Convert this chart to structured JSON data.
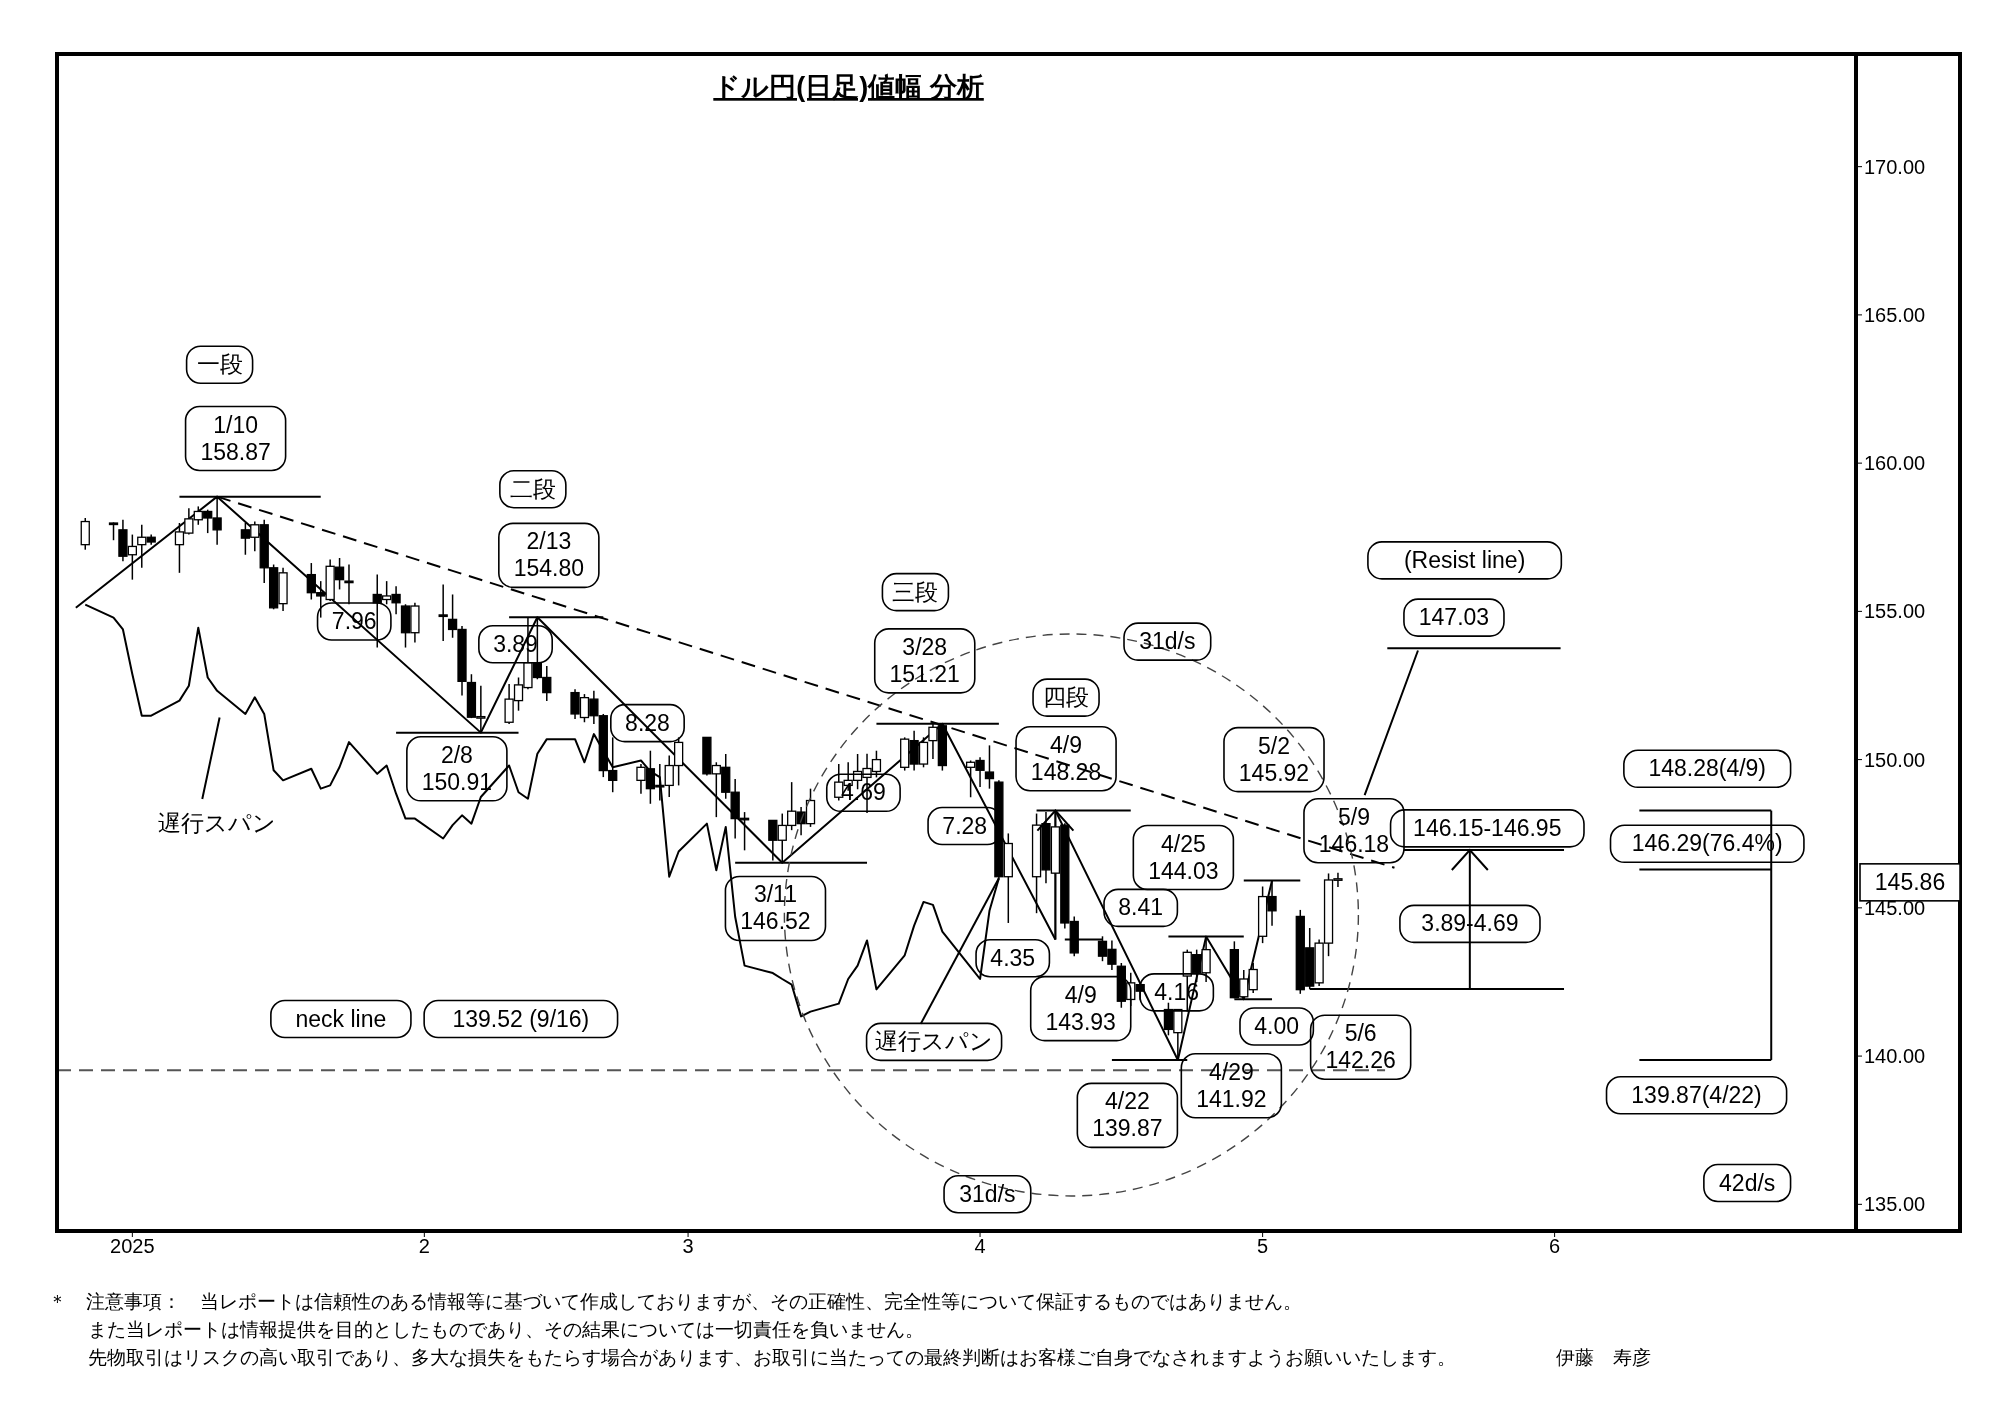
{
  "chart_data": {
    "type": "candlestick",
    "title": "ドル円(日足)値幅  分析",
    "x": [
      "2024-12-27",
      "2024-12-30",
      "2024-12-31",
      "2025-01-01",
      "2025-01-02",
      "2025-01-03",
      "2025-01-06",
      "2025-01-07",
      "2025-01-08",
      "2025-01-09",
      "2025-01-10",
      "2025-01-13",
      "2025-01-14",
      "2025-01-15",
      "2025-01-16",
      "2025-01-17",
      "2025-01-20",
      "2025-01-21",
      "2025-01-22",
      "2025-01-23",
      "2025-01-24",
      "2025-01-27",
      "2025-01-28",
      "2025-01-29",
      "2025-01-30",
      "2025-01-31",
      "2025-02-03",
      "2025-02-04",
      "2025-02-05",
      "2025-02-06",
      "2025-02-07",
      "2025-02-10",
      "2025-02-11",
      "2025-02-12",
      "2025-02-13",
      "2025-02-14",
      "2025-02-17",
      "2025-02-18",
      "2025-02-19",
      "2025-02-20",
      "2025-02-21",
      "2025-02-24",
      "2025-02-25",
      "2025-02-26",
      "2025-02-27",
      "2025-02-28",
      "2025-03-03",
      "2025-03-04",
      "2025-03-05",
      "2025-03-06",
      "2025-03-07",
      "2025-03-10",
      "2025-03-11",
      "2025-03-12",
      "2025-03-13",
      "2025-03-14",
      "2025-03-17",
      "2025-03-18",
      "2025-03-19",
      "2025-03-20",
      "2025-03-21",
      "2025-03-24",
      "2025-03-25",
      "2025-03-26",
      "2025-03-27",
      "2025-03-28",
      "2025-03-31",
      "2025-04-01",
      "2025-04-02",
      "2025-04-03",
      "2025-04-04",
      "2025-04-07",
      "2025-04-08",
      "2025-04-09",
      "2025-04-10",
      "2025-04-11",
      "2025-04-14",
      "2025-04-15",
      "2025-04-16",
      "2025-04-17",
      "2025-04-18",
      "2025-04-21",
      "2025-04-22",
      "2025-04-23",
      "2025-04-24",
      "2025-04-25",
      "2025-04-28",
      "2025-04-29",
      "2025-04-30",
      "2025-05-01",
      "2025-05-02",
      "2025-05-05",
      "2025-05-06",
      "2025-05-07",
      "2025-05-08",
      "2025-05-09"
    ],
    "ohlc": [
      [
        157.25,
        158.15,
        157.08,
        158.03
      ],
      [
        157.98,
        158.0,
        157.4,
        157.95
      ],
      [
        157.75,
        158.09,
        156.69,
        156.86
      ],
      [
        156.91,
        157.59,
        156.07,
        157.19
      ],
      [
        157.25,
        157.92,
        156.47,
        157.5
      ],
      [
        157.5,
        157.59,
        157.25,
        157.34
      ],
      [
        157.25,
        157.98,
        156.3,
        157.68
      ],
      [
        157.64,
        158.48,
        157.59,
        158.12
      ],
      [
        158.09,
        158.54,
        157.92,
        158.37
      ],
      [
        158.37,
        158.43,
        157.64,
        158.15
      ],
      [
        158.15,
        158.87,
        157.25,
        157.75
      ],
      [
        157.75,
        157.98,
        156.91,
        157.47
      ],
      [
        157.5,
        158.03,
        157.03,
        157.92
      ],
      [
        157.92,
        158.09,
        155.96,
        156.47
      ],
      [
        156.47,
        156.58,
        155.07,
        155.12
      ],
      [
        155.26,
        156.47,
        155.01,
        156.3
      ],
      [
        156.24,
        156.63,
        155.4,
        155.63
      ],
      [
        155.63,
        156.02,
        154.79,
        155.52
      ],
      [
        155.4,
        156.75,
        155.35,
        156.52
      ],
      [
        156.49,
        156.8,
        155.74,
        156.07
      ],
      [
        156.02,
        156.58,
        155.24,
        156.0
      ],
      [
        155.57,
        156.24,
        153.78,
        155.29
      ],
      [
        155.4,
        156.02,
        155.24,
        155.52
      ],
      [
        155.57,
        155.85,
        154.9,
        155.29
      ],
      [
        155.18,
        155.24,
        153.78,
        154.28
      ],
      [
        154.28,
        155.29,
        153.95,
        155.18
      ],
      [
        154.88,
        155.91,
        154.0,
        154.86
      ],
      [
        154.73,
        155.57,
        154.11,
        154.39
      ],
      [
        154.39,
        154.51,
        152.16,
        152.64
      ],
      [
        152.6,
        152.88,
        151.4,
        151.43
      ],
      [
        151.4,
        152.49,
        150.91,
        151.45
      ],
      [
        151.26,
        152.55,
        151.2,
        152.04
      ],
      [
        151.99,
        152.77,
        151.65,
        152.52
      ],
      [
        152.43,
        154.78,
        152.37,
        153.27
      ],
      [
        153.27,
        154.8,
        152.71,
        152.77
      ],
      [
        152.77,
        153.16,
        151.98,
        152.26
      ],
      [
        152.26,
        152.37,
        151.37,
        151.54
      ],
      [
        151.42,
        152.21,
        151.26,
        152.09
      ],
      [
        152.04,
        152.32,
        151.2,
        151.48
      ],
      [
        151.48,
        151.54,
        149.41,
        149.63
      ],
      [
        149.63,
        150.75,
        148.9,
        149.3
      ],
      [
        149.3,
        149.85,
        148.85,
        149.74
      ],
      [
        149.69,
        150.3,
        148.51,
        149.02
      ],
      [
        149.13,
        149.85,
        148.62,
        149.1
      ],
      [
        149.13,
        150.14,
        148.74,
        149.8
      ],
      [
        149.8,
        150.75,
        149.13,
        150.58
      ],
      [
        150.75,
        150.75,
        149.46,
        149.52
      ],
      [
        149.52,
        149.91,
        148.06,
        149.8
      ],
      [
        149.74,
        150.19,
        148.68,
        148.9
      ],
      [
        148.9,
        149.35,
        147.34,
        148.01
      ],
      [
        148.02,
        148.23,
        146.94,
        148.0
      ],
      [
        147.95,
        147.95,
        146.6,
        147.28
      ],
      [
        147.28,
        148.18,
        146.52,
        147.78
      ],
      [
        147.78,
        149.24,
        147.62,
        148.26
      ],
      [
        148.23,
        148.4,
        147.45,
        147.84
      ],
      [
        147.84,
        149.02,
        147.73,
        148.62
      ],
      [
        148.73,
        149.85,
        148.62,
        149.24
      ],
      [
        149.13,
        149.91,
        148.95,
        149.3
      ],
      [
        149.3,
        150.19,
        149.0,
        149.6
      ],
      [
        149.4,
        150.2,
        148.2,
        149.7
      ],
      [
        149.6,
        150.3,
        149.4,
        150.0
      ],
      [
        149.74,
        150.75,
        149.63,
        150.69
      ],
      [
        150.64,
        150.97,
        149.63,
        149.85
      ],
      [
        149.85,
        150.75,
        149.74,
        150.58
      ],
      [
        150.64,
        151.2,
        150.02,
        151.09
      ],
      [
        151.14,
        151.21,
        149.63,
        149.8
      ],
      [
        149.74,
        149.97,
        148.73,
        149.91
      ],
      [
        149.97,
        150.08,
        149.08,
        149.64
      ],
      [
        149.58,
        150.48,
        149.02,
        149.36
      ],
      [
        149.24,
        149.3,
        145.99,
        146.05
      ],
      [
        146.05,
        147.51,
        144.49,
        147.17
      ],
      [
        146.05,
        148.18,
        144.82,
        147.79
      ],
      [
        147.84,
        148.23,
        145.83,
        146.28
      ],
      [
        146.17,
        148.28,
        143.93,
        147.73
      ],
      [
        147.79,
        147.85,
        144.3,
        144.49
      ],
      [
        144.54,
        144.71,
        143.37,
        143.48
      ],
      [
        143.87,
        144.04,
        143.2,
        143.37
      ],
      [
        143.6,
        143.9,
        142.9,
        143.1
      ],
      [
        143.03,
        143.14,
        141.63,
        141.85
      ],
      [
        141.91,
        142.81,
        141.69,
        142.47
      ],
      [
        142.41,
        142.5,
        141.9,
        142.19
      ],
      [
        141.57,
        141.8,
        140.7,
        140.9
      ],
      [
        140.79,
        141.57,
        139.87,
        141.57
      ],
      [
        142.7,
        143.59,
        141.5,
        143.5
      ],
      [
        143.42,
        143.59,
        142.5,
        142.81
      ],
      [
        142.81,
        144.03,
        142.5,
        143.59
      ],
      [
        143.59,
        143.87,
        141.95,
        141.97
      ],
      [
        142.0,
        142.9,
        141.92,
        142.6
      ],
      [
        142.24,
        143.14,
        142.13,
        142.92
      ],
      [
        144.04,
        145.72,
        143.81,
        145.38
      ],
      [
        145.38,
        145.92,
        144.4,
        144.9
      ],
      [
        144.71,
        144.93,
        142.1,
        142.24
      ],
      [
        143.65,
        144.32,
        142.26,
        142.36
      ],
      [
        142.47,
        143.93,
        142.36,
        143.81
      ],
      [
        143.81,
        146.16,
        143.37,
        145.94
      ],
      [
        145.94,
        146.18,
        145.7,
        145.98
      ]
    ],
    "series": [
      {
        "name": "遅行スパン",
        "type": "line",
        "color": "#000000",
        "x": [
          "2024-12-27",
          "2024-12-30",
          "2024-12-31",
          "2025-01-01",
          "2025-01-02",
          "2025-01-03",
          "2025-01-06",
          "2025-01-07",
          "2025-01-08",
          "2025-01-09",
          "2025-01-10",
          "2025-01-13",
          "2025-01-14",
          "2025-01-15",
          "2025-01-16",
          "2025-01-17",
          "2025-01-20",
          "2025-01-21",
          "2025-01-22",
          "2025-01-23",
          "2025-01-24",
          "2025-01-27",
          "2025-01-28",
          "2025-01-29",
          "2025-01-30",
          "2025-01-31",
          "2025-02-03",
          "2025-02-04",
          "2025-02-05",
          "2025-02-06",
          "2025-02-07",
          "2025-02-10",
          "2025-02-11",
          "2025-02-12",
          "2025-02-13",
          "2025-02-14",
          "2025-02-17",
          "2025-02-18",
          "2025-02-19",
          "2025-02-20",
          "2025-02-21",
          "2025-02-24",
          "2025-02-25",
          "2025-02-26",
          "2025-02-27",
          "2025-02-28",
          "2025-03-03",
          "2025-03-04",
          "2025-03-05",
          "2025-03-06",
          "2025-03-07",
          "2025-03-10",
          "2025-03-11",
          "2025-03-12",
          "2025-03-13",
          "2025-03-14",
          "2025-03-17",
          "2025-03-18",
          "2025-03-19",
          "2025-03-20",
          "2025-03-21",
          "2025-03-24",
          "2025-03-25",
          "2025-03-26",
          "2025-03-27",
          "2025-03-28",
          "2025-03-31",
          "2025-04-01",
          "2025-04-02",
          "2025-04-03"
        ],
        "values": [
          155.23,
          154.79,
          154.39,
          152.88,
          151.48,
          151.48,
          151.99,
          152.49,
          154.45,
          152.77,
          152.32,
          151.54,
          152.1,
          151.54,
          149.64,
          149.3,
          149.69,
          149.02,
          149.13,
          149.75,
          150.59,
          149.52,
          149.8,
          148.85,
          148.01,
          148.01,
          147.34,
          147.79,
          148.12,
          147.84,
          148.74,
          149.8,
          148.9,
          148.68,
          150.2,
          150.69,
          150.69,
          149.91,
          150.86,
          150.3,
          149.74,
          149.97,
          149.6,
          149.41,
          146.05,
          146.9,
          147.84,
          146.27,
          147.73,
          144.7,
          143.05,
          142.8,
          142.6,
          142.41,
          141.34,
          141.5,
          141.77,
          142.6,
          143.05,
          143.9,
          142.25,
          143.4,
          144.4,
          145.2,
          145.1,
          144.2,
          143.0,
          142.6,
          144.9,
          146.0
        ]
      },
      {
        "type": "line",
        "color": "#000000",
        "x": [
          "2024-12-26",
          "2025-01-10",
          "2025-02-07",
          "2025-02-13",
          "2025-03-11",
          "2025-03-28",
          "2025-04-09"
        ],
        "values": [
          155.12,
          158.87,
          150.91,
          154.8,
          146.52,
          151.21,
          143.93
        ]
      },
      {
        "type": "line",
        "color": "#000000",
        "x": [
          "2025-04-09",
          "2025-04-09"
        ],
        "values": [
          143.93,
          148.28
        ]
      },
      {
        "type": "line",
        "color": "#000000",
        "x": [
          "2025-04-09",
          "2025-04-22",
          "2025-04-25",
          "2025-04-29",
          "2025-05-02"
        ],
        "values": [
          148.28,
          139.87,
          144.03,
          141.92,
          145.92
        ]
      },
      {
        "type": "line",
        "color": "#000000",
        "line_style": "dashed",
        "x": [
          "2025-01-10",
          "2025-05-15"
        ],
        "values": [
          158.87,
          146.35
        ]
      },
      {
        "type": "line",
        "color": "#555555",
        "line_style": "dashed",
        "x": [
          "2024-12-24",
          "2025-05-14"
        ],
        "values": [
          139.52,
          139.52
        ]
      },
      {
        "type": "line",
        "color": "#000000",
        "x": [
          "2025-01-06",
          "2025-01-21"
        ],
        "values": [
          158.87,
          158.87
        ]
      },
      {
        "type": "line",
        "color": "#000000",
        "x": [
          "2025-01-29",
          "2025-02-11"
        ],
        "values": [
          150.91,
          150.91
        ]
      },
      {
        "type": "line",
        "color": "#000000",
        "x": [
          "2025-02-10",
          "2025-02-20"
        ],
        "values": [
          154.8,
          154.8
        ]
      },
      {
        "type": "line",
        "color": "#000000",
        "x": [
          "2025-03-06",
          "2025-03-20"
        ],
        "values": [
          146.52,
          146.52
        ]
      },
      {
        "type": "line",
        "color": "#000000",
        "x": [
          "2025-03-21",
          "2025-04-03"
        ],
        "values": [
          151.21,
          151.21
        ]
      },
      {
        "type": "line",
        "color": "#000000",
        "x": [
          "2025-04-07",
          "2025-04-17"
        ],
        "values": [
          148.28,
          148.28
        ]
      },
      {
        "type": "line",
        "color": "#000000",
        "x": [
          "2025-04-10",
          "2025-04-14"
        ],
        "values": [
          143.93,
          143.93
        ]
      },
      {
        "type": "line",
        "color": "#000000",
        "x": [
          "2025-04-15",
          "2025-04-23"
        ],
        "values": [
          139.87,
          139.87
        ]
      },
      {
        "type": "line",
        "color": "#000000",
        "x": [
          "2025-04-21",
          "2025-04-29"
        ],
        "values": [
          144.03,
          144.03
        ]
      },
      {
        "type": "line",
        "color": "#000000",
        "x": [
          "2025-04-28",
          "2025-05-02"
        ],
        "values": [
          141.92,
          141.92
        ]
      },
      {
        "type": "line",
        "color": "#000000",
        "x": [
          "2025-04-29",
          "2025-05-05"
        ],
        "values": [
          145.92,
          145.92
        ]
      },
      {
        "type": "line",
        "color": "#000000",
        "x": [
          "2025-05-06",
          "2025-06-02"
        ],
        "values": [
          142.26,
          142.26
        ]
      },
      {
        "type": "line",
        "color": "#000000",
        "x": [
          "2025-05-16",
          "2025-06-02"
        ],
        "values": [
          146.95,
          146.95
        ]
      },
      {
        "type": "line",
        "color": "#000000",
        "x": [
          "2025-05-23",
          "2025-05-23"
        ],
        "values": [
          142.26,
          146.95
        ]
      },
      {
        "type": "line",
        "color": "#000000",
        "x": [
          "2025-06-10",
          "2025-06-24"
        ],
        "values": [
          148.28,
          148.28
        ]
      },
      {
        "type": "line",
        "color": "#000000",
        "x": [
          "2025-06-10",
          "2025-06-24"
        ],
        "values": [
          146.29,
          146.29
        ]
      },
      {
        "type": "line",
        "color": "#000000",
        "x": [
          "2025-06-10",
          "2025-06-24"
        ],
        "values": [
          139.87,
          139.87
        ]
      },
      {
        "type": "line",
        "color": "#000000",
        "x": [
          "2025-06-24",
          "2025-06-24"
        ],
        "values": [
          148.28,
          139.87
        ]
      }
    ],
    "xlim": [
      "2024-12-24",
      "2025-07-03"
    ],
    "xticks": [
      {
        "value": "2025-01-01",
        "label": "2025"
      },
      {
        "value": "2025-02-01",
        "label": "2"
      },
      {
        "value": "2025-03-01",
        "label": "3"
      },
      {
        "value": "2025-04-01",
        "label": "4"
      },
      {
        "value": "2025-05-01",
        "label": "5"
      },
      {
        "value": "2025-06-01",
        "label": "6"
      }
    ],
    "ylim": [
      134.1,
      173.8
    ],
    "yticks": [
      {
        "value": 135,
        "label": "135.00"
      },
      {
        "value": 140,
        "label": "140.00"
      },
      {
        "value": 145,
        "label": "145.00"
      },
      {
        "value": 150,
        "label": "150.00"
      },
      {
        "value": 155,
        "label": "155.00"
      },
      {
        "value": 160,
        "label": "160.00"
      },
      {
        "value": 165,
        "label": "165.00"
      },
      {
        "value": 170,
        "label": "170.00"
      }
    ],
    "annotations": [
      "一段",
      "1/10\n158.87",
      "二段",
      "2/13\n154.80",
      "7.96",
      "3.89",
      "2/8\n150.91",
      "8.28",
      "三段",
      "3/28\n151.21",
      "4.69",
      "3/11\n146.52",
      "7.28",
      "四段",
      "4/9\n148.28",
      "4.35",
      "4/9\n143.93",
      {
        "text": "遅行スパン",
        "x": "2025-04-03",
        "y": 146.0
      },
      "8.41",
      "4.16",
      "4/25\n144.03",
      "4/22\n139.87",
      "4/29\n141.92",
      "4.00",
      "5/2\n145.92",
      "5/9\n146.18",
      "5/6\n142.26",
      "31d/s",
      "31d/s",
      "42d/s",
      "(Resist line)",
      "147.03",
      "146.15-146.95",
      "3.89-4.69",
      "148.28(4/9)",
      "146.29(76.4%)",
      "139.87(4/22)",
      "neck line",
      "139.52 (9/16)",
      "145.86",
      "＊　注意事項：　当レポートは信頼性のある情報等に基づいて作成しておりますが、その正確性、完全性等について保証するものではありません。",
      "また当レポートは情報提供を目的としたものであり、その結果については一切責任を負いません。",
      "先物取引はリスクの高い取引であり、多大な損失をもたらす場合があります、お取引に当たっての最終判断はお客様ご自身でなされますようお願いいたします。",
      "伊藤　寿彦"
    ]
  }
}
